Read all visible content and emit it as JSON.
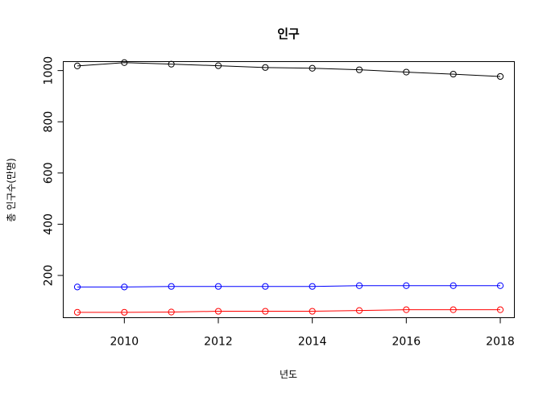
{
  "chart_data": {
    "type": "line",
    "title": "인구",
    "xlabel": "년도",
    "ylabel": "총 인구수(만명)",
    "x": [
      2009,
      2010,
      2011,
      2012,
      2013,
      2014,
      2015,
      2016,
      2017,
      2018
    ],
    "xlim": [
      2008.7,
      2018.3
    ],
    "ylim": [
      35,
      1035
    ],
    "xticks": [
      2010,
      2012,
      2014,
      2016,
      2018
    ],
    "yticks": [
      200,
      400,
      600,
      800,
      1000
    ],
    "grid": false,
    "series": [
      {
        "color": "#000000",
        "values": [
          1018,
          1031,
          1025,
          1019,
          1012,
          1009,
          1003,
          994,
          986,
          977
        ]
      },
      {
        "color": "#0000ff",
        "values": [
          155,
          155,
          157,
          157,
          157,
          157,
          160,
          160,
          160,
          160
        ]
      },
      {
        "color": "#ff0000",
        "values": [
          56,
          56,
          57,
          60,
          60,
          60,
          63,
          66,
          66,
          66
        ]
      }
    ]
  }
}
